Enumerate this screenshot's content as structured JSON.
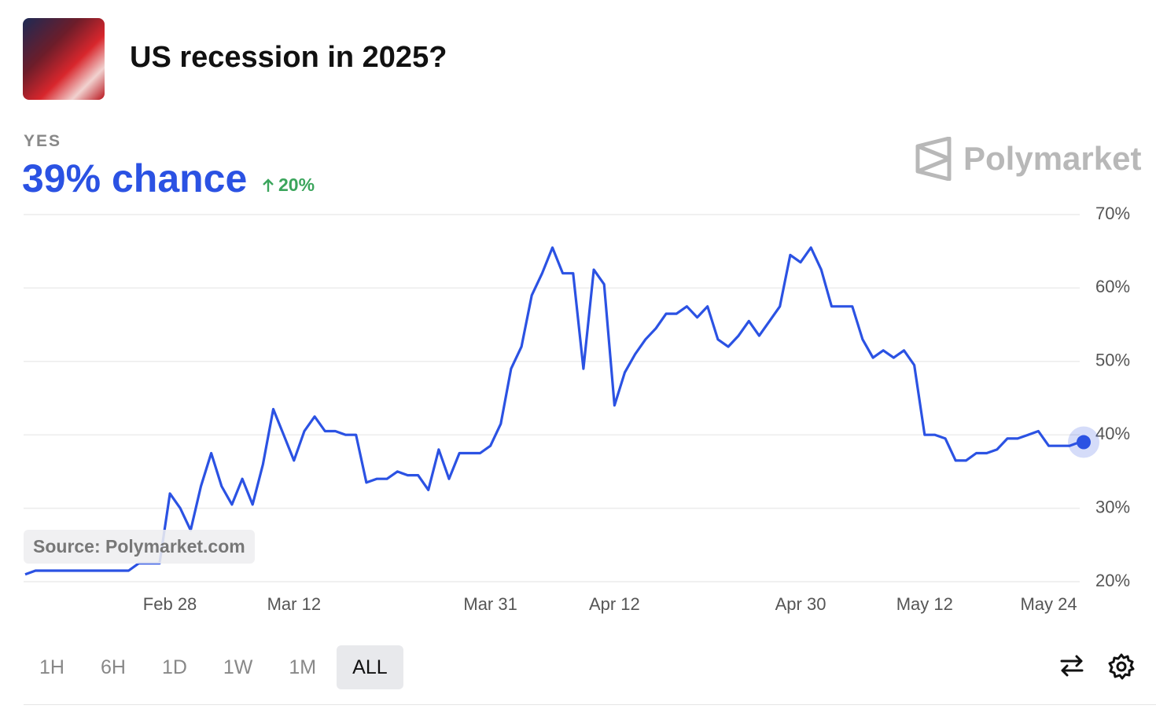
{
  "chart_data": {
    "type": "line",
    "title": "US recession in 2025?",
    "outcome": "YES",
    "headline": "39% chance",
    "change": "20%",
    "brand": "Polymarket",
    "source": "Source: Polymarket.com",
    "color": "#2b52e3",
    "grid": true,
    "ylim": [
      20,
      70
    ],
    "yticks": [
      {
        "value": 20,
        "label": "20%"
      },
      {
        "value": 30,
        "label": "30%"
      },
      {
        "value": 40,
        "label": "40%"
      },
      {
        "value": 50,
        "label": "50%"
      },
      {
        "value": 60,
        "label": "60%"
      },
      {
        "value": 70,
        "label": "70%"
      }
    ],
    "categories": [
      null,
      null,
      null,
      null,
      null,
      null,
      null,
      null,
      null,
      null,
      null,
      null,
      null,
      null,
      "Feb 28",
      null,
      null,
      null,
      null,
      null,
      null,
      null,
      null,
      null,
      null,
      null,
      "Mar 12",
      null,
      null,
      null,
      null,
      null,
      null,
      null,
      null,
      null,
      null,
      null,
      null,
      null,
      null,
      null,
      null,
      null,
      null,
      "Mar 31",
      null,
      null,
      null,
      null,
      null,
      null,
      null,
      null,
      null,
      null,
      null,
      "Apr 12",
      null,
      null,
      null,
      null,
      null,
      null,
      null,
      null,
      null,
      null,
      null,
      null,
      null,
      null,
      null,
      null,
      null,
      "Apr 30",
      null,
      null,
      null,
      null,
      null,
      null,
      null,
      null,
      null,
      null,
      null,
      "May 12",
      null,
      null,
      null,
      null,
      null,
      null,
      null,
      null,
      null,
      null,
      null,
      "May 24",
      null,
      null,
      null
    ],
    "values": [
      21,
      21.5,
      21.5,
      21.5,
      21.5,
      21.5,
      21.5,
      21.5,
      21.5,
      21.5,
      21.5,
      22.5,
      22.5,
      22.5,
      32,
      30,
      27,
      33,
      37.5,
      33,
      30.5,
      34,
      30.5,
      36,
      43.5,
      40,
      36.5,
      40.5,
      42.5,
      40.5,
      40.5,
      40,
      40,
      33.5,
      34,
      34,
      35,
      34.5,
      34.5,
      32.5,
      38,
      34,
      37.5,
      37.5,
      37.5,
      38.5,
      41.5,
      49,
      52,
      59,
      62,
      65.5,
      62,
      62,
      49,
      62.5,
      60.5,
      44,
      48.5,
      51,
      53,
      54.5,
      56.5,
      56.5,
      57.5,
      56,
      57.5,
      53,
      52,
      53.5,
      55.5,
      53.5,
      55.5,
      57.5,
      64.5,
      63.5,
      65.5,
      62.5,
      57.5,
      57.5,
      57.5,
      53,
      50.5,
      51.5,
      50.5,
      51.5,
      49.5,
      40,
      40,
      39.5,
      36.5,
      36.5,
      37.5,
      37.5,
      38,
      39.5,
      39.5,
      40,
      40.5,
      38.5,
      38.5,
      38.5,
      39
    ]
  },
  "controls": [
    "1H",
    "6H",
    "1D",
    "1W",
    "1M",
    "ALL"
  ]
}
